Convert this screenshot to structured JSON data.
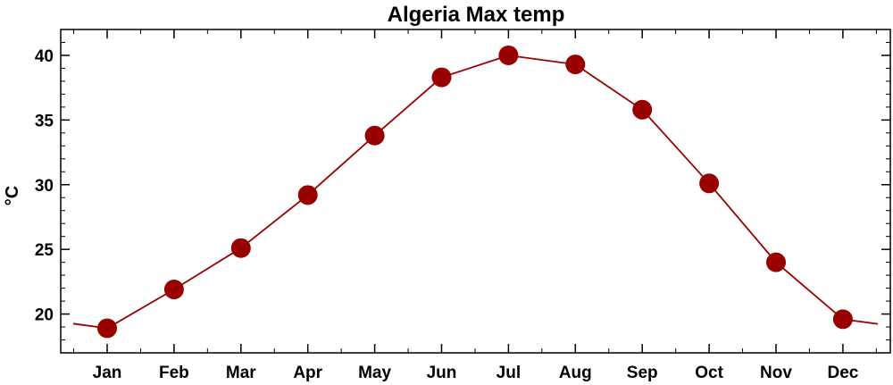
{
  "chart_data": {
    "type": "line",
    "title": "Algeria Max temp",
    "xlabel": "",
    "ylabel": "°C",
    "categories": [
      "Jan",
      "Feb",
      "Mar",
      "Apr",
      "May",
      "Jun",
      "Jul",
      "Aug",
      "Sep",
      "Oct",
      "Nov",
      "Dec"
    ],
    "series": [
      {
        "values": [
          18.9,
          21.9,
          25.1,
          29.2,
          33.8,
          38.3,
          40.0,
          39.3,
          35.8,
          30.1,
          24.0,
          19.6
        ],
        "color": "#990000"
      }
    ],
    "ylim": [
      17.0,
      42.0
    ],
    "yticks": [
      20,
      25,
      30,
      35,
      40
    ],
    "ytick_labels": [
      "20",
      "25",
      "30",
      "35",
      "40"
    ],
    "grid": false,
    "legend": "none",
    "marker": "filled-circle"
  }
}
